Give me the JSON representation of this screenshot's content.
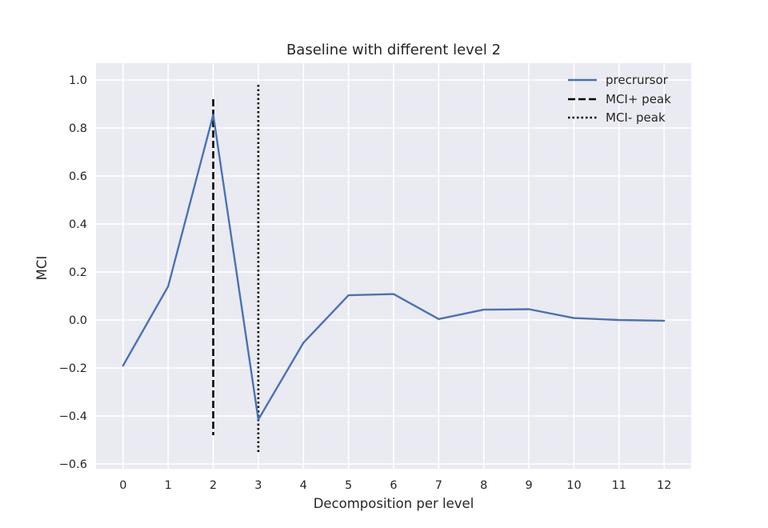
{
  "chart_data": {
    "type": "line",
    "title": "Baseline with different level 2",
    "xlabel": "Decomposition per level",
    "ylabel": "MCI",
    "xlim": [
      -0.6,
      12.6
    ],
    "ylim": [
      -0.62,
      1.07
    ],
    "xticks": [
      0,
      1,
      2,
      3,
      4,
      5,
      6,
      7,
      8,
      9,
      10,
      11,
      12
    ],
    "yticks": [
      -0.6,
      -0.4,
      -0.2,
      0.0,
      0.2,
      0.4,
      0.6,
      0.8,
      1.0
    ],
    "ytick_labels": [
      "−0.6",
      "−0.4",
      "−0.2",
      "0.0",
      "0.2",
      "0.4",
      "0.6",
      "0.8",
      "1.0"
    ],
    "grid": true,
    "legend_position": "top-right",
    "series": [
      {
        "name": "precrursor",
        "color": "#4c72b0",
        "style": "solid",
        "x": [
          0,
          1,
          2,
          3,
          4,
          5,
          6,
          7,
          8,
          9,
          10,
          11,
          12
        ],
        "y": [
          -0.19,
          0.14,
          0.855,
          -0.415,
          -0.095,
          0.103,
          0.108,
          0.004,
          0.043,
          0.045,
          0.008,
          0.0,
          -0.003
        ]
      }
    ],
    "vlines": [
      {
        "name": "MCI+ peak",
        "x": 2,
        "ymin": -0.48,
        "ymax": 0.92,
        "style": "dashed",
        "color": "#000000"
      },
      {
        "name": "MCI- peak",
        "x": 3,
        "ymin": -0.55,
        "ymax": 0.98,
        "style": "dotted",
        "color": "#000000"
      }
    ]
  }
}
